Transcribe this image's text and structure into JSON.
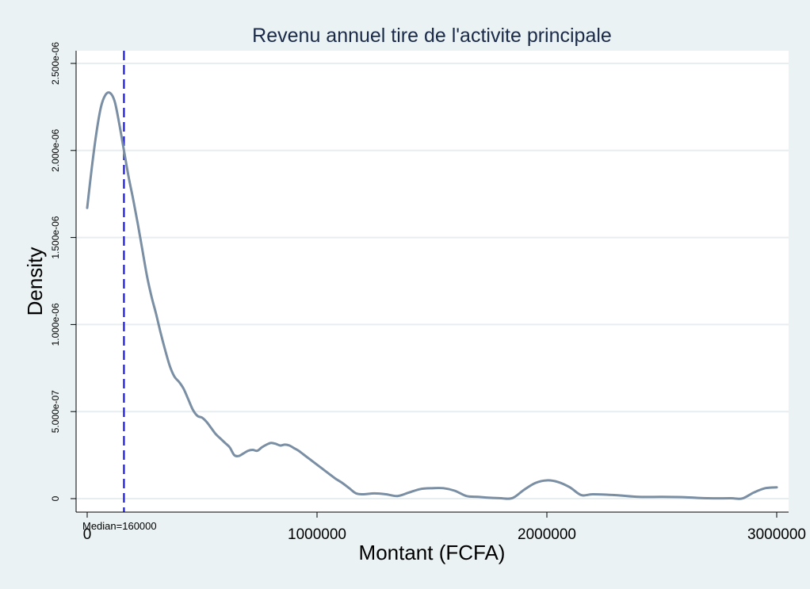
{
  "chart_data": {
    "type": "line",
    "title": "Revenu annuel tire de l'activite principale",
    "xlabel": "Montant (FCFA)",
    "ylabel": "Density",
    "xlim": [
      0,
      3000000
    ],
    "ylim": [
      0,
      2.5e-06
    ],
    "x_ticks": [
      {
        "value": 0,
        "label": "0"
      },
      {
        "value": 1000000,
        "label": "1000000"
      },
      {
        "value": 2000000,
        "label": "2000000"
      },
      {
        "value": 3000000,
        "label": "3000000"
      }
    ],
    "y_ticks": [
      {
        "value": 0,
        "label": "0"
      },
      {
        "value": 5e-07,
        "label": "5.000e-07"
      },
      {
        "value": 1e-06,
        "label": "1.000e-06"
      },
      {
        "value": 1.5e-06,
        "label": "1.500e-06"
      },
      {
        "value": 2e-06,
        "label": "2.000e-06"
      },
      {
        "value": 2.5e-06,
        "label": "2.500e-06"
      }
    ],
    "grid": true,
    "line_color": "#7a8ea4",
    "median_color": "#1a1acc",
    "median": {
      "value": 160000,
      "label": "Median=160000"
    },
    "series": [
      {
        "x": [
          0,
          20000,
          40000,
          60000,
          80000,
          100000,
          120000,
          140000,
          160000,
          180000,
          200000,
          220000,
          240000,
          260000,
          280000,
          300000,
          320000,
          340000,
          360000,
          380000,
          400000,
          420000,
          440000,
          460000,
          480000,
          500000,
          520000,
          540000,
          560000,
          580000,
          600000,
          620000,
          640000,
          660000,
          680000,
          700000,
          720000,
          740000,
          760000,
          780000,
          800000,
          820000,
          840000,
          860000,
          880000,
          900000,
          920000,
          940000,
          960000,
          980000,
          1000000,
          1020000,
          1050000,
          1080000,
          1110000,
          1140000,
          1170000,
          1200000,
          1250000,
          1300000,
          1350000,
          1400000,
          1450000,
          1500000,
          1550000,
          1600000,
          1650000,
          1700000,
          1750000,
          1800000,
          1850000,
          1900000,
          1950000,
          2000000,
          2050000,
          2100000,
          2150000,
          2200000,
          2300000,
          2400000,
          2500000,
          2600000,
          2700000,
          2800000,
          2850000,
          2900000,
          2950000,
          3000000
        ],
        "y": [
          1.67e-06,
          1.9e-06,
          2.1e-06,
          2.25e-06,
          2.32e-06,
          2.33e-06,
          2.28e-06,
          2.15e-06,
          2e-06,
          1.85e-06,
          1.72e-06,
          1.58e-06,
          1.43e-06,
          1.28e-06,
          1.16e-06,
          1.06e-06,
          9.5e-07,
          8.5e-07,
          7.6e-07,
          7e-07,
          6.7e-07,
          6.3e-07,
          5.7e-07,
          5.1e-07,
          4.75e-07,
          4.65e-07,
          4.4e-07,
          4.05e-07,
          3.7e-07,
          3.45e-07,
          3.2e-07,
          2.95e-07,
          2.5e-07,
          2.45e-07,
          2.6e-07,
          2.75e-07,
          2.8e-07,
          2.75e-07,
          2.95e-07,
          3.1e-07,
          3.2e-07,
          3.15e-07,
          3.05e-07,
          3.1e-07,
          3.05e-07,
          2.9e-07,
          2.75e-07,
          2.55e-07,
          2.35e-07,
          2.15e-07,
          1.95e-07,
          1.75e-07,
          1.45e-07,
          1.15e-07,
          9e-08,
          6e-08,
          3e-08,
          2.5e-08,
          3e-08,
          2.5e-08,
          1.5e-08,
          3.5e-08,
          5.5e-08,
          6e-08,
          6e-08,
          4.5e-08,
          1.5e-08,
          1e-08,
          5e-09,
          2e-09,
          3e-09,
          5e-08,
          9e-08,
          1.05e-07,
          9.5e-08,
          6.5e-08,
          2e-08,
          2.5e-08,
          2e-08,
          1e-08,
          1e-08,
          8e-09,
          2e-09,
          2e-09,
          1e-09,
          3.5e-08,
          6e-08,
          6.5e-08
        ]
      }
    ]
  }
}
